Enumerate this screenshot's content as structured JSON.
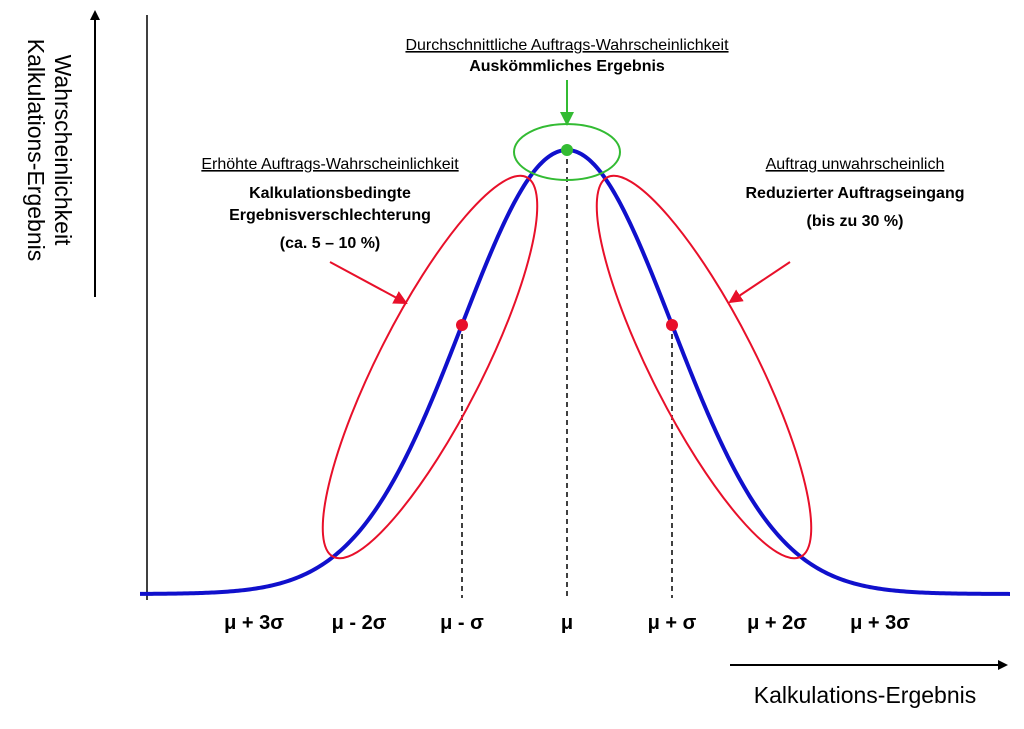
{
  "y_axis_label": {
    "line1": "Wahrscheinlichkeit",
    "line2": "Kalkulations-Ergebnis"
  },
  "x_axis_label": "Kalkulations-Ergebnis",
  "x_labels": [
    "μ + 3σ",
    "μ - 2σ",
    "μ - σ",
    "μ",
    "μ + σ",
    "μ + 2σ",
    "μ + 3σ"
  ],
  "center_note": {
    "title": "Durchschnittliche Auftrags-Wahrscheinlichkeit",
    "text": "Auskömmliches Ergebnis"
  },
  "left_note": {
    "title": "Erhöhte Auftrags-Wahrscheinlichkeit",
    "lines": [
      "Kalkulationsbedingte",
      "Ergebnisverschlechterung",
      "(ca. 5 – 10 %)"
    ]
  },
  "right_note": {
    "title": "Auftrag unwahrscheinlich",
    "lines": [
      "Reduzierter Auftragseingang",
      "(bis zu 30 %)"
    ]
  }
}
